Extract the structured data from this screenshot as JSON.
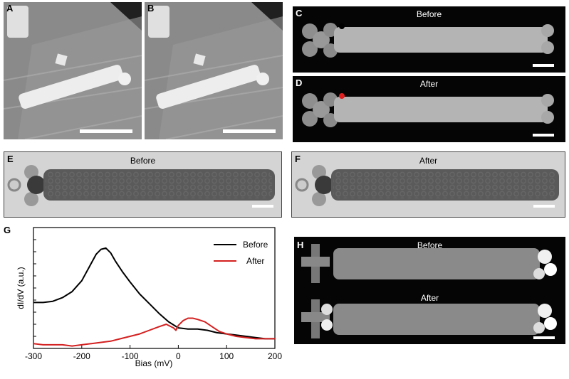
{
  "figure": {
    "panels": {
      "A": {
        "label": "A"
      },
      "B": {
        "label": "B"
      },
      "C": {
        "label": "C",
        "caption": "Before"
      },
      "D": {
        "label": "D",
        "caption": "After"
      },
      "E": {
        "label": "E",
        "caption": "Before"
      },
      "F": {
        "label": "F",
        "caption": "After"
      },
      "G": {
        "label": "G"
      },
      "H": {
        "label": "H",
        "caption_top": "Before",
        "caption_bottom": "After"
      }
    },
    "marker_colors": {
      "C": "#000000",
      "D": "#e02020"
    }
  },
  "chart_data": {
    "type": "line",
    "xlabel": "Bias (mV)",
    "ylabel": "dI/dV (a.u.)",
    "xlim": [
      -300,
      200
    ],
    "ylim": [
      0,
      1
    ],
    "xticks": [
      "-300",
      "-200",
      "-100",
      "0",
      "100",
      "200"
    ],
    "legend_position": "top-right",
    "series": [
      {
        "name": "Before",
        "color": "#000000",
        "x": [
          -300,
          -280,
          -260,
          -240,
          -220,
          -200,
          -185,
          -170,
          -160,
          -150,
          -140,
          -130,
          -115,
          -100,
          -80,
          -60,
          -40,
          -20,
          0,
          20,
          40,
          60,
          80,
          100,
          120,
          140,
          160,
          180,
          200
        ],
        "y": [
          0.38,
          0.38,
          0.39,
          0.42,
          0.47,
          0.56,
          0.67,
          0.78,
          0.82,
          0.83,
          0.79,
          0.72,
          0.63,
          0.55,
          0.45,
          0.37,
          0.29,
          0.22,
          0.17,
          0.16,
          0.16,
          0.15,
          0.13,
          0.12,
          0.11,
          0.1,
          0.09,
          0.08,
          0.08
        ]
      },
      {
        "name": "After",
        "color": "#d42020",
        "x": [
          -300,
          -280,
          -260,
          -240,
          -220,
          -200,
          -180,
          -160,
          -140,
          -120,
          -100,
          -80,
          -60,
          -40,
          -25,
          -10,
          -5,
          0,
          10,
          20,
          30,
          40,
          55,
          70,
          85,
          100,
          120,
          140,
          160,
          180,
          200
        ],
        "y": [
          0.04,
          0.03,
          0.03,
          0.03,
          0.02,
          0.03,
          0.04,
          0.05,
          0.06,
          0.08,
          0.1,
          0.12,
          0.15,
          0.18,
          0.2,
          0.17,
          0.15,
          0.19,
          0.23,
          0.25,
          0.25,
          0.24,
          0.22,
          0.18,
          0.14,
          0.12,
          0.1,
          0.09,
          0.08,
          0.08,
          0.08
        ]
      }
    ]
  }
}
